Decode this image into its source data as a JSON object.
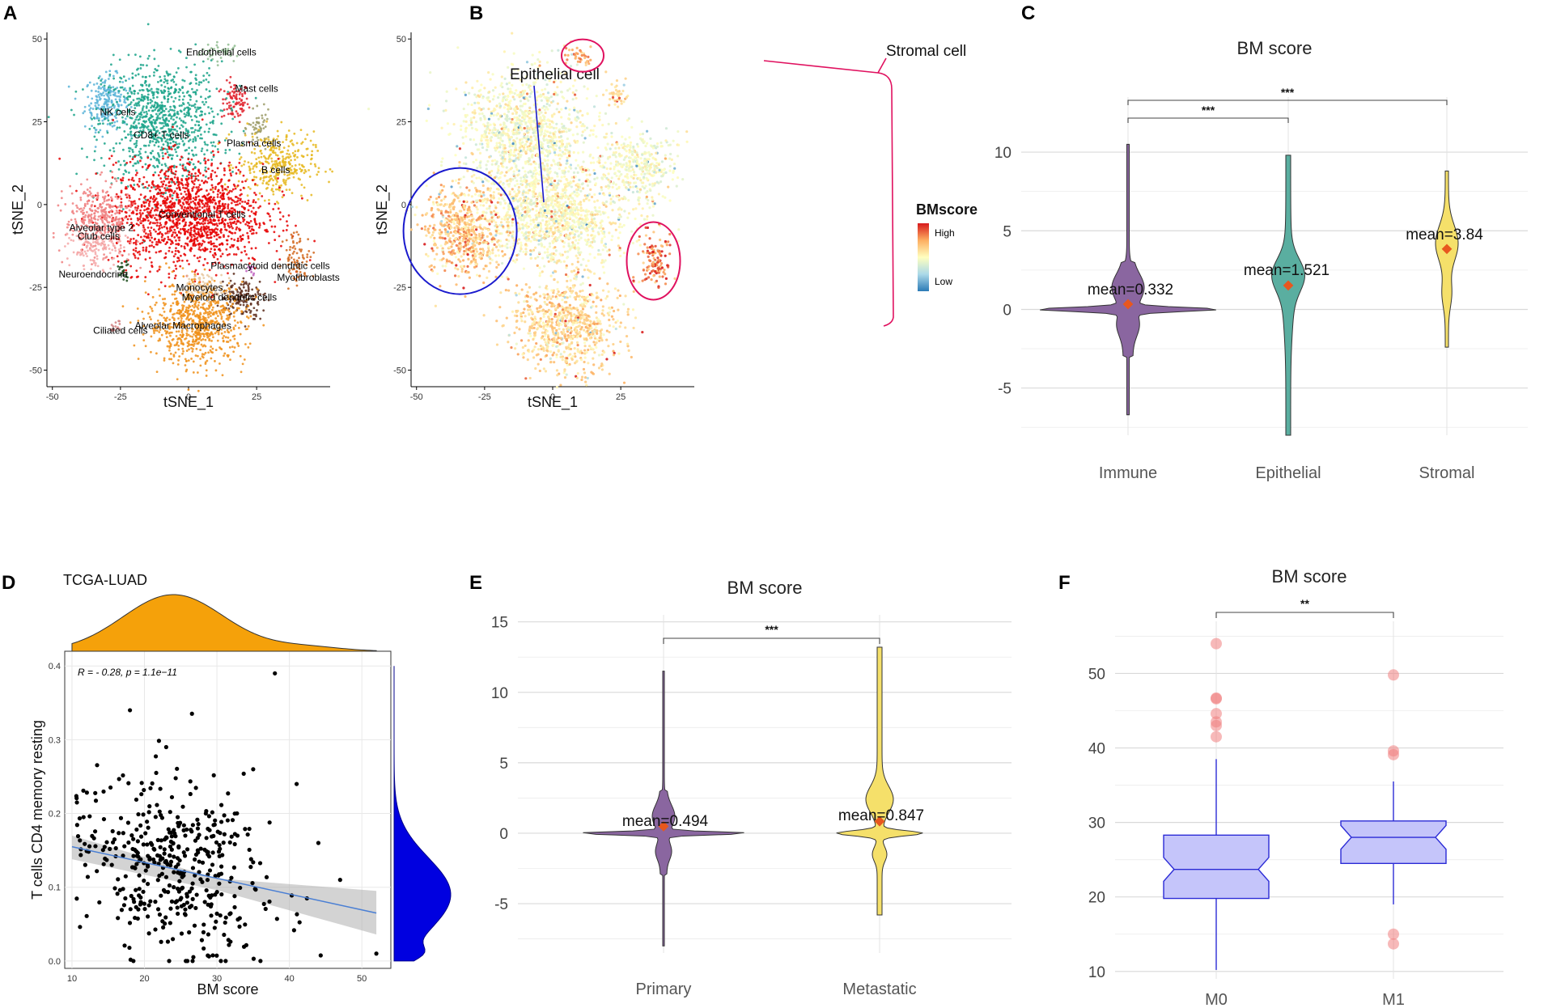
{
  "chart_data": [
    {
      "panel": "A",
      "type": "scatter",
      "title": "",
      "xlabel": "tSNE_1",
      "ylabel": "tSNE_2",
      "xlim": [
        -52,
        52
      ],
      "ylim": [
        -55,
        52
      ],
      "xticks": [
        -50,
        -25,
        0,
        25
      ],
      "yticks": [
        -50,
        -25,
        0,
        25,
        50
      ],
      "clusters": [
        {
          "name": "Endothelial cells",
          "color": "#8fbc8f",
          "cx": 12,
          "cy": 46,
          "sx": 4,
          "sy": 1.5,
          "n": 40,
          "lx": 12,
          "ly": 45
        },
        {
          "name": "Mast cells",
          "color": "#e0202a",
          "cx": 17,
          "cy": 31,
          "sx": 2.5,
          "sy": 3,
          "n": 90,
          "lx": 25,
          "ly": 34
        },
        {
          "name": "NK cells",
          "color": "#5ab4d8",
          "cx": -30,
          "cy": 31,
          "sx": 4,
          "sy": 4,
          "n": 220,
          "lx": -26,
          "ly": 27
        },
        {
          "name": "CD8+ T cells",
          "color": "#1aa38a",
          "cx": -10,
          "cy": 25,
          "sx": 11,
          "sy": 9,
          "n": 900,
          "lx": -10,
          "ly": 20
        },
        {
          "name": "Plasma cells",
          "color": "#9c9c6a",
          "cx": 26,
          "cy": 23,
          "sx": 2,
          "sy": 2.5,
          "n": 50,
          "lx": 24,
          "ly": 17.5
        },
        {
          "name": "B cells",
          "color": "#e6b820",
          "cx": 32,
          "cy": 12,
          "sx": 7,
          "sy": 5,
          "n": 340,
          "lx": 32,
          "ly": 9.5
        },
        {
          "name": "Conventional T cells",
          "color": "#e60000",
          "cx": 0,
          "cy": -3,
          "sx": 14,
          "sy": 8,
          "n": 1500,
          "lx": 5,
          "ly": -4
        },
        {
          "name": "Alveolar type 2",
          "color": "#f08080",
          "cx": -33,
          "cy": -4,
          "sx": 6,
          "sy": 5,
          "n": 320,
          "lx": -32,
          "ly": -8
        },
        {
          "name": "Club cells",
          "color": "#f5a8a8",
          "cx": -34,
          "cy": -13,
          "sx": 5,
          "sy": 3,
          "n": 150,
          "lx": -33,
          "ly": -10.5
        },
        {
          "name": "Neuroendocrine",
          "color": "#1a4a1a",
          "cx": -24,
          "cy": -20,
          "sx": 1.2,
          "sy": 1.5,
          "n": 25,
          "lx": -35,
          "ly": -22
        },
        {
          "name": "Plasmacytoid dendritic cells",
          "color": "#c060c0",
          "cx": 23,
          "cy": -19,
          "sx": 1,
          "sy": 1,
          "n": 12,
          "lx": 30,
          "ly": -19.5
        },
        {
          "name": "Myofibroblasts",
          "color": "#d2691e",
          "cx": 40,
          "cy": -16,
          "sx": 2.5,
          "sy": 4,
          "n": 80,
          "lx": 44,
          "ly": -23
        },
        {
          "name": "Monocytes",
          "color": "#e8c8a0",
          "cx": 5,
          "cy": -25,
          "sx": 4,
          "sy": 2,
          "n": 120,
          "lx": 4,
          "ly": -26
        },
        {
          "name": "Myeloid dendritic cells",
          "color": "#5a2a1a",
          "cx": 20,
          "cy": -28,
          "sx": 4,
          "sy": 3,
          "n": 150,
          "lx": 15,
          "ly": -29
        },
        {
          "name": "Alveolar Macrophages",
          "color": "#f0901a",
          "cx": 3,
          "cy": -36,
          "sx": 9,
          "sy": 6,
          "n": 700,
          "lx": -2,
          "ly": -37.5
        },
        {
          "name": "Ciliated cells",
          "color": "#d08080",
          "cx": -27,
          "cy": -37,
          "sx": 1,
          "sy": 1,
          "n": 15,
          "lx": -25,
          "ly": -39
        }
      ]
    },
    {
      "panel": "B",
      "type": "scatter",
      "title": "",
      "xlabel": "tSNE_1",
      "ylabel": "tSNE_2",
      "xlim": [
        -52,
        52
      ],
      "ylim": [
        -55,
        52
      ],
      "xticks": [
        -50,
        -25,
        0,
        25
      ],
      "yticks": [
        -50,
        -25,
        0,
        25,
        50
      ],
      "legend_title": "BMscore",
      "legend_high": "High",
      "legend_low": "Low",
      "annotations": [
        "Epithelial cell",
        "Stromal cell"
      ]
    },
    {
      "panel": "C",
      "type": "violin",
      "title": "BM score",
      "categories": [
        "Immune",
        "Epithelial",
        "Stromal"
      ],
      "means": [
        0.332,
        1.521,
        3.84
      ],
      "mean_labels": [
        "mean=0.332",
        "mean=1.521",
        "mean=3.84"
      ],
      "mins": [
        -6.7,
        -8.0,
        -2.4
      ],
      "maxs": [
        10.5,
        9.8,
        8.8
      ],
      "ylim": [
        -8.0,
        13.5
      ],
      "yticks": [
        -5,
        0,
        5,
        10
      ],
      "colors": [
        "#8a66a0",
        "#5aaea0",
        "#f5e06a"
      ],
      "significance": [
        {
          "from": 0,
          "to": 1,
          "label": "***"
        },
        {
          "from": 0,
          "to": 2,
          "label": "***"
        }
      ]
    },
    {
      "panel": "D",
      "type": "scatter",
      "title": "TCGA-LUAD",
      "xlabel": "BM score",
      "ylabel": "T cells CD4 memory resting",
      "xlim": [
        9,
        54
      ],
      "ylim": [
        -0.01,
        0.42
      ],
      "xticks": [
        10,
        20,
        30,
        40,
        50
      ],
      "yticks": [
        0.0,
        0.1,
        0.2,
        0.3,
        0.4
      ],
      "stat_label": "R = - 0.28, p = 1.1e−11",
      "regression": {
        "x0": 10,
        "y0": 0.155,
        "x1": 52,
        "y1": 0.065
      }
    },
    {
      "panel": "E",
      "type": "violin",
      "title": "BM score",
      "categories": [
        "Primary",
        "Metastatic"
      ],
      "means": [
        0.494,
        0.847
      ],
      "mean_labels": [
        "mean=0.494",
        "mean=0.847"
      ],
      "mins": [
        -8.0,
        -5.8
      ],
      "maxs": [
        11.5,
        13.2
      ],
      "ylim": [
        -8.5,
        15.5
      ],
      "yticks": [
        -5,
        0,
        5,
        10,
        15
      ],
      "colors": [
        "#8a66a0",
        "#f5e06a"
      ],
      "significance": [
        {
          "from": 0,
          "to": 1,
          "label": "***"
        }
      ]
    },
    {
      "panel": "F",
      "type": "box",
      "title": "BM score",
      "categories": [
        "M0",
        "M1"
      ],
      "q1": [
        19.8,
        24.5
      ],
      "median": [
        23.7,
        28.0
      ],
      "q3": [
        28.3,
        30.2
      ],
      "whisker_low": [
        10.2,
        19.0
      ],
      "whisker_high": [
        38.5,
        35.5
      ],
      "outliers": [
        [
          54.0,
          46.7,
          46.6,
          44.6,
          43.5,
          43.0,
          41.5
        ],
        [
          49.8,
          39.6,
          39.1,
          15.0,
          13.7
        ]
      ],
      "ylim": [
        9,
        57
      ],
      "yticks": [
        10,
        20,
        30,
        40,
        50
      ],
      "significance": [
        {
          "from": 0,
          "to": 1,
          "label": "**"
        }
      ]
    }
  ]
}
